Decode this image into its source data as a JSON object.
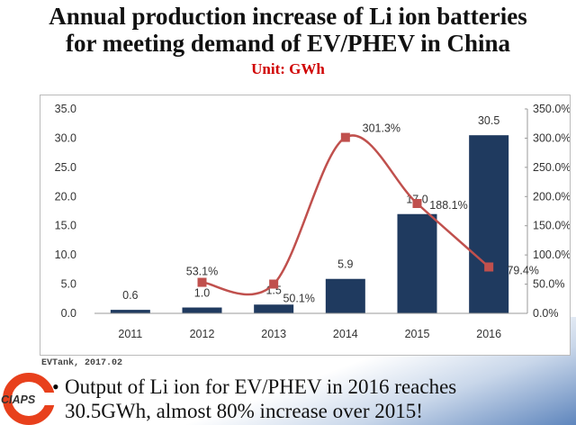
{
  "title_line1": "Annual production increase of Li ion batteries",
  "title_line2": "for meeting demand of EV/PHEV in China",
  "unit": "Unit: GWh",
  "source": "EVTank, 2017.02",
  "logo_text": "CIAPS",
  "bullet_line1": "Output of Li ion for EV/PHEV in 2016 reaches",
  "bullet_line2": "30.5GWh,  almost 80% increase over 2015!",
  "chart_data": {
    "type": "bar+line",
    "categories": [
      "2011",
      "2012",
      "2013",
      "2014",
      "2015",
      "2016"
    ],
    "series": [
      {
        "type": "bar",
        "axis": "left",
        "color": "#1f3a5f",
        "values": [
          0.6,
          1.0,
          1.5,
          5.9,
          17.0,
          30.5
        ],
        "labels": [
          "0.6",
          "1.0",
          "1.5",
          "5.9",
          "17.0",
          "30.5"
        ]
      },
      {
        "type": "line",
        "axis": "right",
        "color": "#c0504d",
        "values": [
          null,
          53.1,
          50.1,
          301.3,
          188.1,
          79.4
        ],
        "labels": [
          "",
          "53.1%",
          "50.1%",
          "301.3%",
          "188.1%",
          "79.4%"
        ]
      }
    ],
    "left_ylim": [
      0,
      35
    ],
    "left_ticks": [
      "0.0",
      "5.0",
      "10.0",
      "15.0",
      "20.0",
      "25.0",
      "30.0",
      "35.0"
    ],
    "right_ylim": [
      0,
      350
    ],
    "right_ticks": [
      "0.0%",
      "50.0%",
      "100.0%",
      "150.0%",
      "200.0%",
      "250.0%",
      "300.0%",
      "350.0%"
    ],
    "grid": false
  }
}
